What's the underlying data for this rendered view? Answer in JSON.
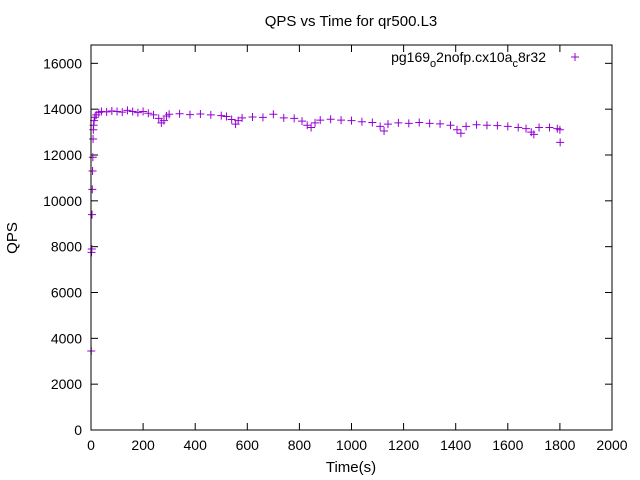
{
  "chart_data": {
    "type": "scatter",
    "title": "QPS vs Time for qr500.L3",
    "xlabel": "Time(s)",
    "ylabel": "QPS",
    "xlim": [
      0,
      2000
    ],
    "ylim": [
      0,
      16800
    ],
    "xticks": [
      0,
      200,
      400,
      600,
      800,
      1000,
      1200,
      1400,
      1600,
      1800,
      2000
    ],
    "yticks": [
      0,
      2000,
      4000,
      6000,
      8000,
      10000,
      12000,
      14000,
      16000
    ],
    "grid": false,
    "legend_position": "top-right",
    "marker": "+",
    "series": [
      {
        "name_parts": {
          "base": "pg169",
          "sub1": "o",
          "mid": "2nofp.cx10a",
          "sub2": "c",
          "tail": "8r32"
        },
        "color": "#9400d3",
        "points": [
          [
            1,
            3450
          ],
          [
            2,
            7750
          ],
          [
            3,
            7900
          ],
          [
            4,
            9400
          ],
          [
            5,
            10500
          ],
          [
            6,
            11300
          ],
          [
            7,
            11900
          ],
          [
            8,
            12700
          ],
          [
            9,
            13100
          ],
          [
            10,
            13300
          ],
          [
            12,
            13500
          ],
          [
            15,
            13650
          ],
          [
            20,
            13750
          ],
          [
            30,
            13850
          ],
          [
            40,
            13900
          ],
          [
            60,
            13880
          ],
          [
            80,
            13920
          ],
          [
            100,
            13900
          ],
          [
            120,
            13870
          ],
          [
            140,
            13950
          ],
          [
            160,
            13900
          ],
          [
            180,
            13850
          ],
          [
            200,
            13900
          ],
          [
            220,
            13820
          ],
          [
            240,
            13750
          ],
          [
            260,
            13600
          ],
          [
            270,
            13400
          ],
          [
            280,
            13500
          ],
          [
            290,
            13700
          ],
          [
            300,
            13780
          ],
          [
            340,
            13800
          ],
          [
            380,
            13760
          ],
          [
            420,
            13790
          ],
          [
            460,
            13750
          ],
          [
            500,
            13720
          ],
          [
            520,
            13680
          ],
          [
            540,
            13550
          ],
          [
            555,
            13350
          ],
          [
            565,
            13500
          ],
          [
            580,
            13620
          ],
          [
            620,
            13660
          ],
          [
            660,
            13640
          ],
          [
            700,
            13780
          ],
          [
            740,
            13620
          ],
          [
            780,
            13600
          ],
          [
            810,
            13480
          ],
          [
            830,
            13300
          ],
          [
            845,
            13200
          ],
          [
            860,
            13400
          ],
          [
            880,
            13520
          ],
          [
            920,
            13560
          ],
          [
            960,
            13520
          ],
          [
            1000,
            13500
          ],
          [
            1040,
            13450
          ],
          [
            1080,
            13420
          ],
          [
            1110,
            13250
          ],
          [
            1125,
            13050
          ],
          [
            1140,
            13350
          ],
          [
            1180,
            13400
          ],
          [
            1220,
            13380
          ],
          [
            1260,
            13420
          ],
          [
            1300,
            13380
          ],
          [
            1340,
            13360
          ],
          [
            1380,
            13300
          ],
          [
            1405,
            13100
          ],
          [
            1420,
            12950
          ],
          [
            1440,
            13250
          ],
          [
            1480,
            13320
          ],
          [
            1520,
            13300
          ],
          [
            1560,
            13280
          ],
          [
            1600,
            13250
          ],
          [
            1640,
            13200
          ],
          [
            1670,
            13150
          ],
          [
            1690,
            13000
          ],
          [
            1700,
            12900
          ],
          [
            1720,
            13200
          ],
          [
            1760,
            13200
          ],
          [
            1790,
            13150
          ],
          [
            1800,
            13100
          ],
          [
            1801,
            12550
          ]
        ]
      }
    ]
  }
}
